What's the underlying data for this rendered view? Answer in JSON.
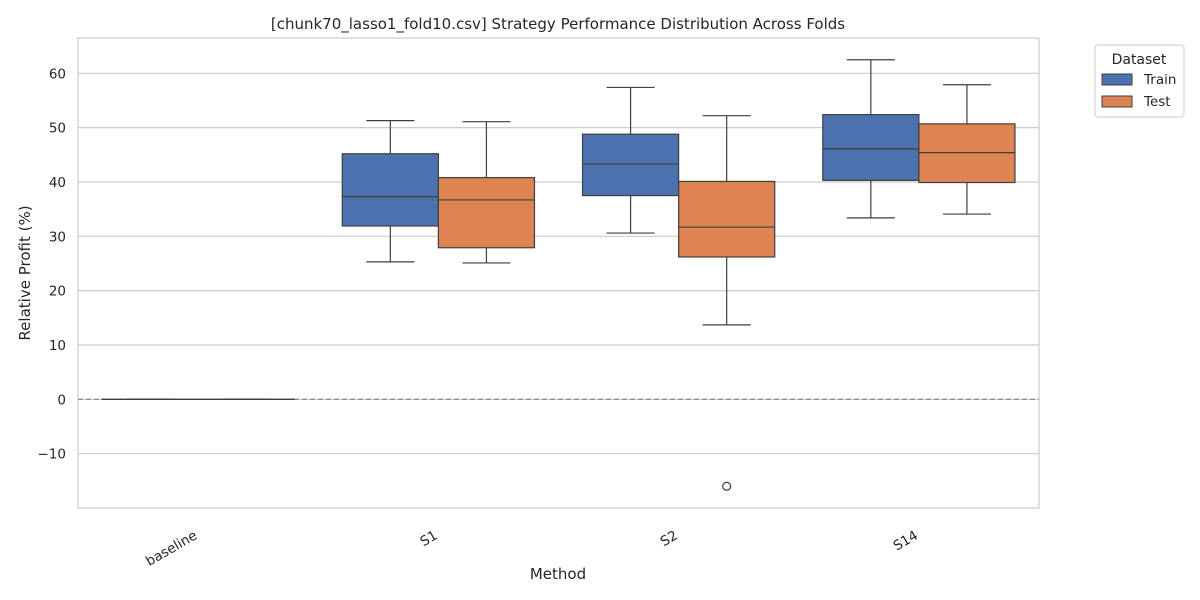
{
  "chart_data": {
    "type": "box",
    "title": "[chunk70_lasso1_fold10.csv] Strategy Performance Distribution Across Folds",
    "xlabel": "Method",
    "ylabel": "Relative Profit (%)",
    "categories": [
      "baseline",
      "S1",
      "S2",
      "S14"
    ],
    "ylim": [
      -20,
      66.5
    ],
    "yticks": [
      -10,
      0,
      10,
      20,
      30,
      40,
      50,
      60
    ],
    "ytick_labels": [
      "−10",
      "0",
      "10",
      "20",
      "30",
      "40",
      "50",
      "60"
    ],
    "grid": true,
    "reference_line": {
      "y": 0,
      "style": "dashed"
    },
    "legend": {
      "title": "Dataset",
      "position": "outside-top-right",
      "entries": [
        "Train",
        "Test"
      ]
    },
    "series": [
      {
        "name": "Train",
        "color": "#4c72b0",
        "boxes": [
          {
            "whislo": 0,
            "q1": 0,
            "med": 0,
            "q3": 0,
            "whishi": 0,
            "fliers": []
          },
          {
            "whislo": 25.3,
            "q1": 31.9,
            "med": 37.3,
            "q3": 45.2,
            "whishi": 51.3,
            "fliers": []
          },
          {
            "whislo": 30.6,
            "q1": 37.5,
            "med": 43.3,
            "q3": 48.8,
            "whishi": 57.4,
            "fliers": []
          },
          {
            "whislo": 33.4,
            "q1": 40.3,
            "med": 46.1,
            "q3": 52.4,
            "whishi": 62.5,
            "fliers": []
          }
        ]
      },
      {
        "name": "Test",
        "color": "#dd8452",
        "boxes": [
          {
            "whislo": 0,
            "q1": 0,
            "med": 0,
            "q3": 0,
            "whishi": 0,
            "fliers": []
          },
          {
            "whislo": 25.1,
            "q1": 27.9,
            "med": 36.7,
            "q3": 40.8,
            "whishi": 51.1,
            "fliers": []
          },
          {
            "whislo": 13.7,
            "q1": 26.2,
            "med": 31.7,
            "q3": 40.1,
            "whishi": 52.2,
            "fliers": [
              -16.0
            ]
          },
          {
            "whislo": 34.1,
            "q1": 39.9,
            "med": 45.4,
            "q3": 50.7,
            "whishi": 57.9,
            "fliers": []
          }
        ]
      }
    ]
  }
}
